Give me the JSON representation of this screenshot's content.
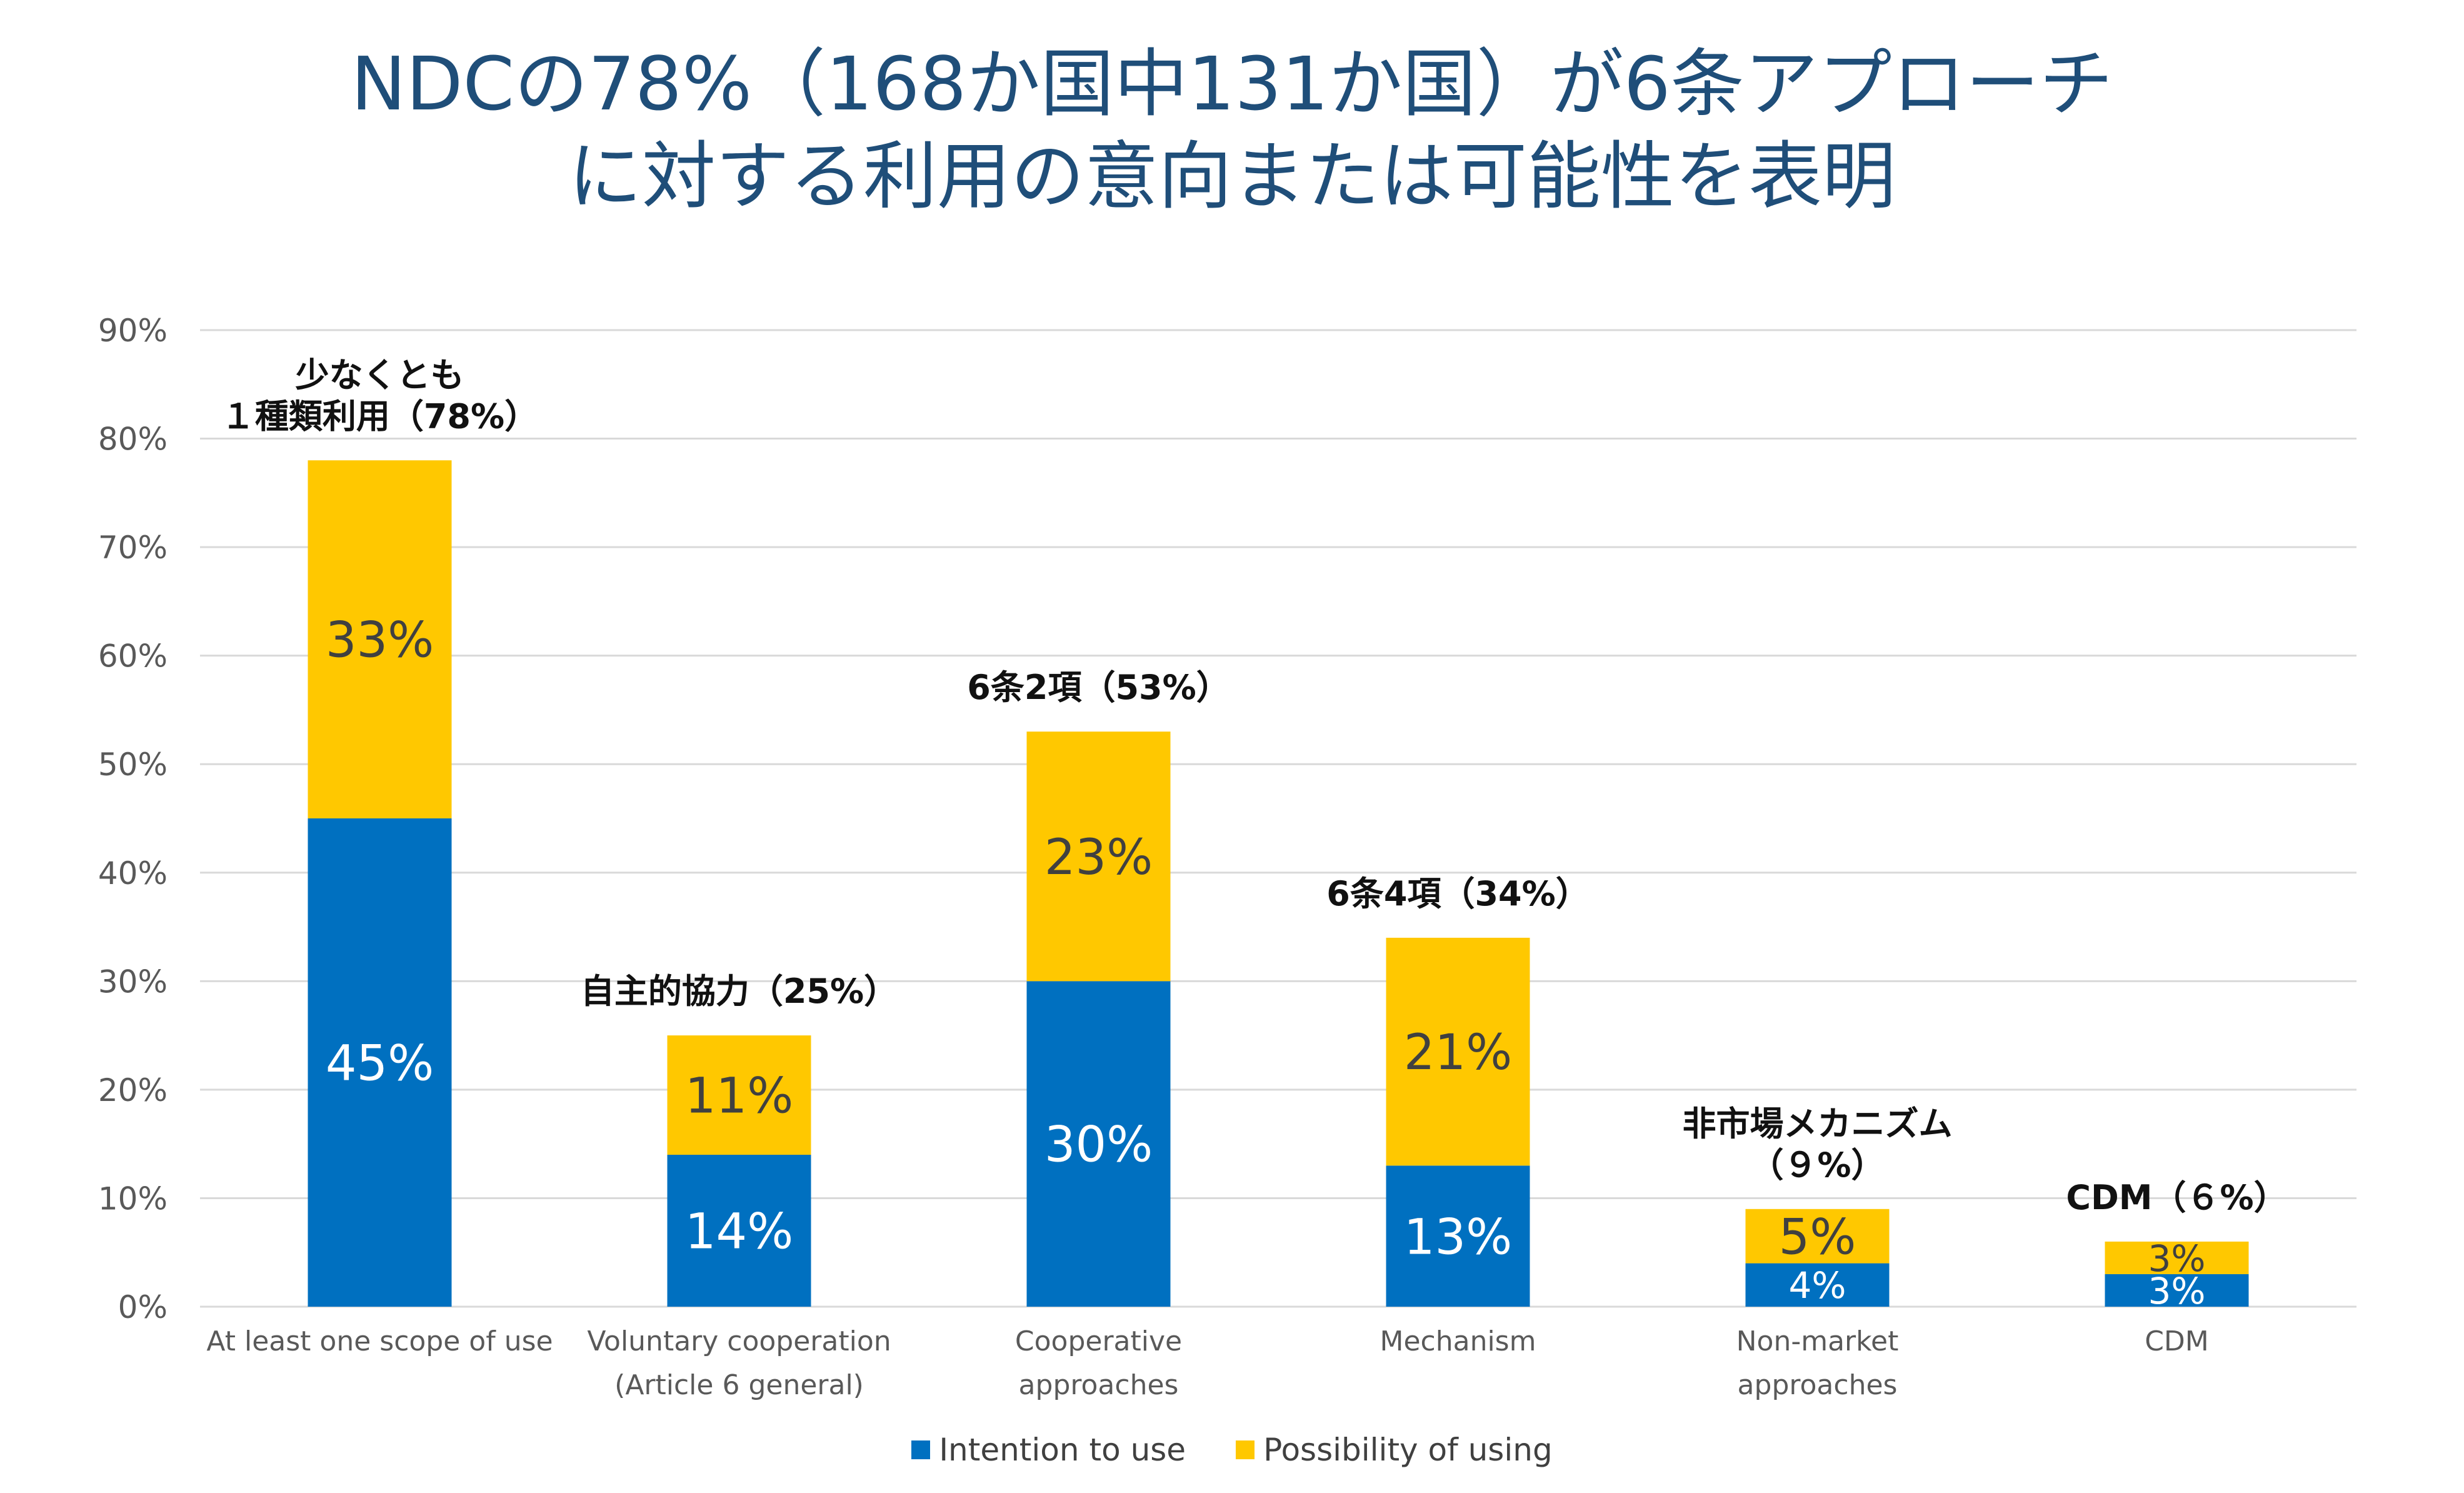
{
  "title_lines": [
    "NDCの78%（168か国中131か国）が6条アプローチ",
    "に対する利用の意向または可能性を表明"
  ],
  "colors": {
    "intention": "#0070c0",
    "possibility": "#ffc800",
    "title": "#1f4e79",
    "grid": "#d9d9d9",
    "axis_text": "#595959"
  },
  "chart_data": {
    "type": "bar",
    "stacked": true,
    "title": "NDCの78%（168か国中131か国）が6条アプローチに対する利用の意向または可能性を表明",
    "ylim": [
      0,
      90
    ],
    "yticks": [
      "0%",
      "10%",
      "20%",
      "30%",
      "40%",
      "50%",
      "60%",
      "70%",
      "80%",
      "90%"
    ],
    "grid": true,
    "legend_position": "bottom",
    "categories": [
      [
        "At least one scope of use"
      ],
      [
        "Voluntary cooperation",
        "(Article 6 general)"
      ],
      [
        "Cooperative",
        "approaches"
      ],
      [
        "Mechanism"
      ],
      [
        "Non-market",
        "approaches"
      ],
      [
        "CDM"
      ]
    ],
    "series": [
      {
        "name": "Intention to use",
        "values": [
          45,
          14,
          30,
          13,
          4,
          3
        ],
        "labels": [
          "45%",
          "14%",
          "30%",
          "13%",
          "4%",
          "3%"
        ]
      },
      {
        "name": "Possibility of using",
        "values": [
          33,
          11,
          23,
          21,
          5,
          3
        ],
        "labels": [
          "33%",
          "11%",
          "23%",
          "21%",
          "5%",
          "3%"
        ]
      }
    ],
    "annotations": [
      [
        "少なくとも",
        "１種類利用（78%）"
      ],
      [
        "自主的協力（25%）"
      ],
      [
        "6条2項（53%）"
      ],
      [
        "6条4項（34%）"
      ],
      [
        "非市場メカニズム",
        "（９%）"
      ],
      [
        "CDM（６%）"
      ]
    ]
  }
}
